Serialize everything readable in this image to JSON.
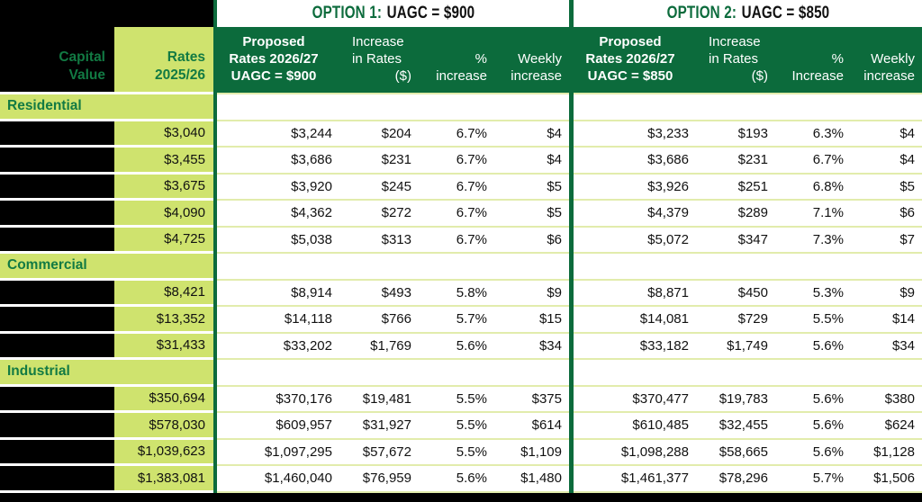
{
  "header": {
    "capital_value": "Capital\nValue",
    "rates": "Rates\n2025/26",
    "option1": {
      "title_prefix": "OPTION 1:",
      "title_suffix": "UAGC = $900",
      "proposed": "Proposed\nRates 2026/27\nUAGC = $900",
      "increase_lines": "Increase\nin Rates",
      "increase_unit": "($)",
      "pct": "%\nincrease",
      "weekly": "Weekly\nincrease"
    },
    "option2": {
      "title_prefix": "OPTION 2:",
      "title_suffix": "UAGC = $850",
      "proposed": "Proposed\nRates 2026/27\nUAGC = $850",
      "increase_lines": "Increase\nin Rates",
      "increase_unit": "($)",
      "pct": "%\nIncrease",
      "weekly": "Weekly\nincrease"
    }
  },
  "colors": {
    "dark_green": "#0c6b3c",
    "light_green": "#cfe36e",
    "green_text": "#127a43",
    "pale_separator": "#e2ecac",
    "redacted_black": "#000000"
  },
  "sections": [
    {
      "name": "Residential",
      "rows": [
        {
          "rates": "$3,040",
          "o1": [
            "$3,244",
            "$204",
            "6.7%",
            "$4"
          ],
          "o2": [
            "$3,233",
            "$193",
            "6.3%",
            "$4"
          ]
        },
        {
          "rates": "$3,455",
          "o1": [
            "$3,686",
            "$231",
            "6.7%",
            "$4"
          ],
          "o2": [
            "$3,686",
            "$231",
            "6.7%",
            "$4"
          ]
        },
        {
          "rates": "$3,675",
          "o1": [
            "$3,920",
            "$245",
            "6.7%",
            "$5"
          ],
          "o2": [
            "$3,926",
            "$251",
            "6.8%",
            "$5"
          ]
        },
        {
          "rates": "$4,090",
          "o1": [
            "$4,362",
            "$272",
            "6.7%",
            "$5"
          ],
          "o2": [
            "$4,379",
            "$289",
            "7.1%",
            "$6"
          ]
        },
        {
          "rates": "$4,725",
          "o1": [
            "$5,038",
            "$313",
            "6.7%",
            "$6"
          ],
          "o2": [
            "$5,072",
            "$347",
            "7.3%",
            "$7"
          ]
        }
      ]
    },
    {
      "name": "Commercial",
      "rows": [
        {
          "rates": "$8,421",
          "o1": [
            "$8,914",
            "$493",
            "5.8%",
            "$9"
          ],
          "o2": [
            "$8,871",
            "$450",
            "5.3%",
            "$9"
          ]
        },
        {
          "rates": "$13,352",
          "o1": [
            "$14,118",
            "$766",
            "5.7%",
            "$15"
          ],
          "o2": [
            "$14,081",
            "$729",
            "5.5%",
            "$14"
          ]
        },
        {
          "rates": "$31,433",
          "o1": [
            "$33,202",
            "$1,769",
            "5.6%",
            "$34"
          ],
          "o2": [
            "$33,182",
            "$1,749",
            "5.6%",
            "$34"
          ]
        }
      ]
    },
    {
      "name": "Industrial",
      "rows": [
        {
          "rates": "$350,694",
          "o1": [
            "$370,176",
            "$19,481",
            "5.5%",
            "$375"
          ],
          "o2": [
            "$370,477",
            "$19,783",
            "5.6%",
            "$380"
          ]
        },
        {
          "rates": "$578,030",
          "o1": [
            "$609,957",
            "$31,927",
            "5.5%",
            "$614"
          ],
          "o2": [
            "$610,485",
            "$32,455",
            "5.6%",
            "$624"
          ]
        },
        {
          "rates": "$1,039,623",
          "o1": [
            "$1,097,295",
            "$57,672",
            "5.5%",
            "$1,109"
          ],
          "o2": [
            "$1,098,288",
            "$58,665",
            "5.6%",
            "$1,128"
          ]
        },
        {
          "rates": "$1,383,081",
          "o1": [
            "$1,460,040",
            "$76,959",
            "5.6%",
            "$1,480"
          ],
          "o2": [
            "$1,461,377",
            "$78,296",
            "5.7%",
            "$1,506"
          ]
        }
      ]
    }
  ]
}
